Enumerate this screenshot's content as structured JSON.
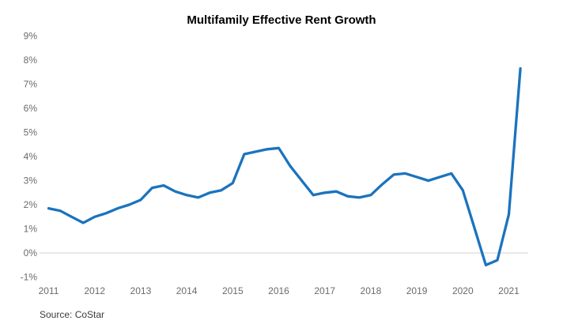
{
  "title": "Multifamily Effective Rent Growth",
  "source": "Source: CoStar",
  "colors": {
    "line": "#1b73be",
    "gridline": "#d9d9d9",
    "tick_text": "#6b6b6b",
    "title_text": "#000000",
    "background": "#ffffff"
  },
  "chart_data": {
    "type": "line",
    "title": "Multifamily Effective Rent Growth",
    "xlabel": "",
    "ylabel": "",
    "x": [
      "2011Q1",
      "2011Q2",
      "2011Q3",
      "2011Q4",
      "2012Q1",
      "2012Q2",
      "2012Q3",
      "2012Q4",
      "2013Q1",
      "2013Q2",
      "2013Q3",
      "2013Q4",
      "2014Q1",
      "2014Q2",
      "2014Q3",
      "2014Q4",
      "2015Q1",
      "2015Q2",
      "2015Q3",
      "2015Q4",
      "2016Q1",
      "2016Q2",
      "2016Q3",
      "2016Q4",
      "2017Q1",
      "2017Q2",
      "2017Q3",
      "2017Q4",
      "2018Q1",
      "2018Q2",
      "2018Q3",
      "2018Q4",
      "2019Q1",
      "2019Q2",
      "2019Q3",
      "2019Q4",
      "2020Q1",
      "2020Q2",
      "2020Q3",
      "2020Q4",
      "2021Q1",
      "2021Q2"
    ],
    "values": [
      1.85,
      1.75,
      1.5,
      1.25,
      1.5,
      1.65,
      1.85,
      2.0,
      2.2,
      2.7,
      2.8,
      2.55,
      2.4,
      2.3,
      2.5,
      2.6,
      2.9,
      4.1,
      4.2,
      4.3,
      4.35,
      3.6,
      3.0,
      2.4,
      2.5,
      2.55,
      2.35,
      2.3,
      2.4,
      2.85,
      3.25,
      3.3,
      3.15,
      3.0,
      3.15,
      3.3,
      2.6,
      1.05,
      -0.5,
      -0.3,
      1.6,
      7.65
    ],
    "x_tick_labels": [
      "2011",
      "2012",
      "2013",
      "2014",
      "2015",
      "2016",
      "2017",
      "2018",
      "2019",
      "2020",
      "2021"
    ],
    "y_tick_labels": [
      "9%",
      "8%",
      "7%",
      "6%",
      "5%",
      "4%",
      "3%",
      "2%",
      "1%",
      "0%",
      "-1%"
    ],
    "y_tick_values": [
      9,
      8,
      7,
      6,
      5,
      4,
      3,
      2,
      1,
      0,
      -1
    ],
    "ylim": [
      -1,
      9
    ],
    "grid": "horizontal line at 0% only",
    "legend": "none",
    "units": "percent"
  }
}
